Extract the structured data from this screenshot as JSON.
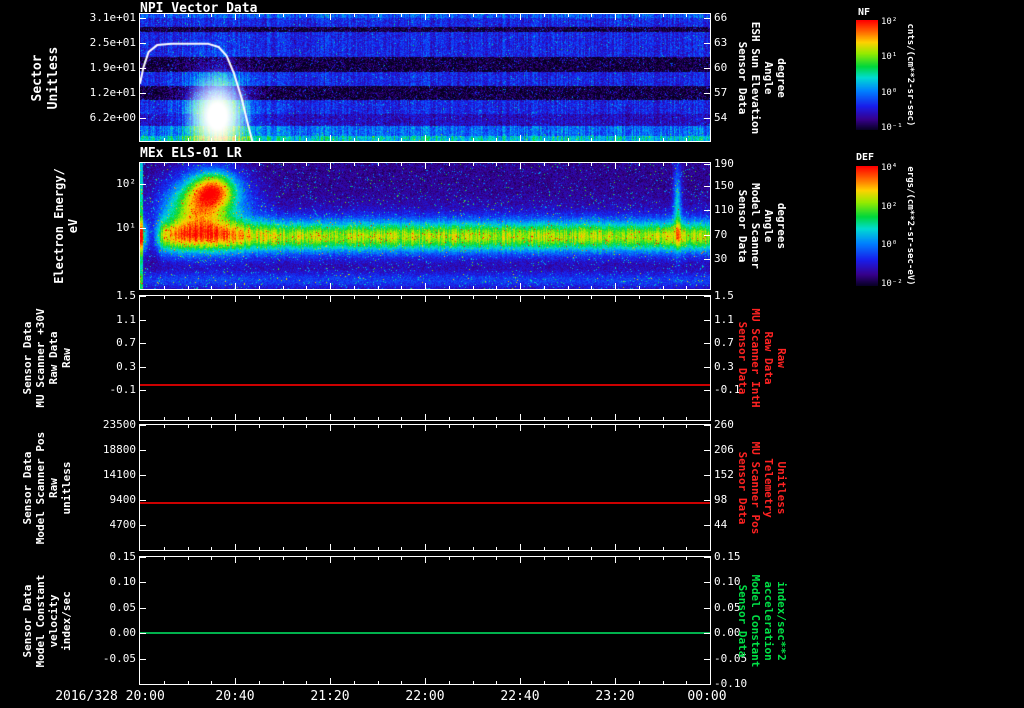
{
  "colors": {
    "background": "#000000",
    "foreground": "#ffffff",
    "red_series": "#cc0000",
    "red_label": "#ff2222",
    "green_series": "#00b04c",
    "green_label": "#00e046",
    "white_line": "#ffffff"
  },
  "xaxis": {
    "date": "2016/328",
    "labels": [
      "2016/328 20:00",
      "20:40",
      "21:20",
      "22:00",
      "22:40",
      "23:20",
      "00:00"
    ]
  },
  "chart_data": [
    {
      "type": "heatmap",
      "title": "NPI Vector Data",
      "left_label_lines": [
        "Sector",
        "Unitless"
      ],
      "left_ticks": [
        "3.1e+01",
        "2.5e+01",
        "1.9e+01",
        "1.2e+01",
        "6.2e+00"
      ],
      "right_label_lines": [
        "Sensor Data",
        "ESH Sun Elevation",
        "Angle",
        "degree"
      ],
      "right_ticks": [
        "66",
        "63",
        "60",
        "57",
        "54"
      ],
      "colorbar": {
        "title": "NF",
        "ticks": [
          "10²",
          "10¹",
          "10⁰",
          "10⁻¹"
        ],
        "units": "cnts/(cm**2-sr-sec)"
      },
      "overlay_line": {
        "name": "sun-elevation-curve",
        "color": "#ffffff",
        "points_xfrac_yfrac": [
          [
            0,
            0.55
          ],
          [
            0.006,
            0.42
          ],
          [
            0.015,
            0.3
          ],
          [
            0.03,
            0.245
          ],
          [
            0.055,
            0.235
          ],
          [
            0.12,
            0.235
          ],
          [
            0.138,
            0.26
          ],
          [
            0.152,
            0.33
          ],
          [
            0.165,
            0.47
          ],
          [
            0.178,
            0.66
          ],
          [
            0.19,
            0.88
          ],
          [
            0.197,
            1.0
          ]
        ]
      },
      "content_note": "blue speckle spectrogram with dark horizontal dropout bands, bright cyan patch near 20:30 at low sectors, bright row along bottom edge"
    },
    {
      "type": "heatmap",
      "title": "MEx ELS-01 LR",
      "left_label_lines": [
        "Electron Energy/",
        "eV"
      ],
      "left_ticks": [
        "10²",
        "10¹"
      ],
      "right_label_lines": [
        "Sensor Data",
        "Model Scanner",
        "Angle",
        "degrees"
      ],
      "right_ticks": [
        "190",
        "150",
        "110",
        "70",
        "30"
      ],
      "colorbar": {
        "title": "DEF",
        "ticks": [
          "10⁴",
          "10²",
          "10⁰",
          "10⁻²"
        ],
        "units": "ergs/(cm**2-sr-sec-eV)"
      },
      "content_note": "green flux band near 10^1 eV across full interval, intense yellow-red enhancement 20:10-20:40 at higher energies, narrow green spike near 23:45, purple speckle background"
    },
    {
      "type": "line",
      "left_label_lines": [
        "Sensor Data",
        "MU Scanner +30V",
        "Raw Data",
        "Raw"
      ],
      "left_ticks": [
        "1.5",
        "1.1",
        "0.7",
        "0.3",
        "-0.1"
      ],
      "right_label_lines": [
        "Sensor Data",
        "MU Scanner IntH",
        "Raw Data",
        "Raw"
      ],
      "right_ticks": [
        "1.5",
        "1.1",
        "0.7",
        "0.3",
        "-0.1"
      ],
      "right_label_color": "red",
      "ylim": [
        -0.6,
        1.5
      ],
      "series": [
        {
          "name": "MU Scanner +30V Raw",
          "color": "red",
          "value": 0.0
        }
      ]
    },
    {
      "type": "line",
      "left_label_lines": [
        "Sensor Data",
        "Model Scanner Pos",
        "Raw",
        "unitless"
      ],
      "left_ticks": [
        "23500",
        "18800",
        "14100",
        "9400",
        "4700"
      ],
      "right_label_lines": [
        "Sensor Data",
        "MU Scanner Pos",
        "Telemetry",
        "Unitless"
      ],
      "right_ticks": [
        "260",
        "206",
        "152",
        "98",
        "44"
      ],
      "right_label_color": "red",
      "ylim": [
        0,
        23500
      ],
      "series": [
        {
          "name": "Model Scanner Pos Raw",
          "color": "red",
          "value": 8800
        }
      ]
    },
    {
      "type": "line",
      "left_label_lines": [
        "Sensor Data",
        "Model Constant",
        "velocity",
        "index/sec"
      ],
      "left_ticks": [
        "0.15",
        "0.10",
        "0.05",
        "0.00",
        "-0.05"
      ],
      "right_label_lines": [
        "Sensor Data",
        "Model Constant",
        "acceleration",
        "index/sec**2"
      ],
      "right_ticks": [
        "0.15",
        "0.10",
        "0.05",
        "0.00",
        "-0.05",
        "-0.10"
      ],
      "right_label_color": "green",
      "ylim": [
        -0.1,
        0.15
      ],
      "series": [
        {
          "name": "Model Constant velocity",
          "color": "green",
          "value": 0.0
        }
      ]
    }
  ]
}
